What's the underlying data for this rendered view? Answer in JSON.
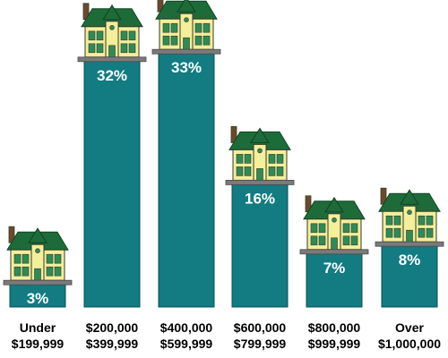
{
  "chart_data": {
    "type": "bar",
    "title": "",
    "xlabel": "",
    "ylabel": "",
    "ylim": [
      0,
      33
    ],
    "grid": false,
    "legend": "none",
    "categories": [
      [
        "Under",
        "$199,999"
      ],
      [
        "$200,000",
        "$399,999"
      ],
      [
        "$400,000",
        "$599,999"
      ],
      [
        "$600,000",
        "$799,999"
      ],
      [
        "$800,000",
        "$999,999"
      ],
      [
        "Over",
        "$1,000,000"
      ]
    ],
    "values": [
      3,
      32,
      33,
      16,
      7,
      8
    ],
    "value_labels": [
      "3%",
      "32%",
      "33%",
      "16%",
      "7%",
      "8%"
    ]
  },
  "colors": {
    "bar": "#137b82",
    "bar_edge": "#0b4f54",
    "roof": "#1e6b3a",
    "roof_dark": "#0f4522",
    "house_wall": "#f3ef9a",
    "house_trim": "#3a3a2a",
    "window": "#2e8b57",
    "chimney": "#6b4a2b",
    "ledge": "#7a7a7a",
    "ledge_dark": "#4a4a4a"
  },
  "icons": {
    "bar_cap": "house-icon"
  }
}
